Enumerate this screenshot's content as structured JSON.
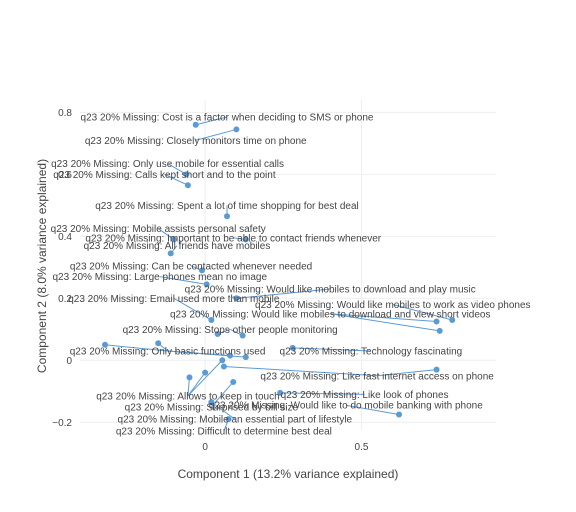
{
  "chart_data": {
    "type": "scatter",
    "xlabel": "Component 1 (13.2% variance explained)",
    "ylabel": "Component 2 (8.0% variance explained)",
    "xlim": [
      -0.4,
      0.93
    ],
    "ylim": [
      -0.225,
      0.84
    ],
    "xticks": [
      0,
      0.5
    ],
    "xtick_labels": [
      "0",
      "0.5"
    ],
    "yticks": [
      -0.2,
      0,
      0.2,
      0.4,
      0.6,
      0.8
    ],
    "ytick_labels": [
      "−0.2",
      "0",
      "0.2",
      "0.4",
      "0.6",
      "0.8"
    ],
    "grid": true,
    "point_color": "#5b9bd5",
    "points": [
      {
        "label": "q23 20% Missing: Cost is a factor when deciding to SMS or phone",
        "x": -0.03,
        "y": 0.76,
        "lx": 0.07,
        "ly": 0.785
      },
      {
        "label": "q23 20% Missing: Closely monitors time on phone",
        "x": 0.1,
        "y": 0.745,
        "lx": -0.03,
        "ly": 0.71
      },
      {
        "label": "q23 20% Missing: Only use mobile for essential calls",
        "x": -0.06,
        "y": 0.6,
        "lx": -0.12,
        "ly": 0.635
      },
      {
        "label": "q23 20% Missing: Calls kept short and to the point",
        "x": -0.055,
        "y": 0.565,
        "lx": -0.13,
        "ly": 0.6
      },
      {
        "label": "q23 20% Missing: Spent a lot of time shopping for best deal",
        "x": 0.07,
        "y": 0.465,
        "lx": 0.07,
        "ly": 0.5
      },
      {
        "label": "q23 20% Missing: Mobile assists personal safety",
        "x": -0.1,
        "y": 0.39,
        "lx": -0.15,
        "ly": 0.425
      },
      {
        "label": "q23 20% Missing: Important to be able to contact friends whenever",
        "x": 0.13,
        "y": 0.39,
        "lx": 0.09,
        "ly": 0.395
      },
      {
        "label": "q23 20% Missing: All friends have mobiles",
        "x": -0.11,
        "y": 0.345,
        "lx": -0.09,
        "ly": 0.37
      },
      {
        "label": "q23 20% Missing: Can be contacted whenever needed",
        "x": -0.01,
        "y": 0.29,
        "lx": -0.045,
        "ly": 0.305
      },
      {
        "label": "q23 20% Missing: Large phones mean no image",
        "x": 0.005,
        "y": 0.245,
        "lx": -0.145,
        "ly": 0.27
      },
      {
        "label": "q23 20% Missing: Would like mobiles to download and play music",
        "x": 0.1,
        "y": 0.2,
        "lx": 0.4,
        "ly": 0.23
      },
      {
        "label": "q23 20% Missing: Email used more than mobile",
        "x": 0.02,
        "y": 0.13,
        "lx": -0.1,
        "ly": 0.2
      },
      {
        "label": "q23 20% Missing: Would like mobiles to work as video phones",
        "x": 0.79,
        "y": 0.13,
        "lx": 0.6,
        "ly": 0.18
      },
      {
        "label": "q23 20% Missing: Would like mobiles to download and view short videos",
        "x": 0.74,
        "y": 0.125,
        "lx": 0.4,
        "ly": 0.15
      },
      {
        "label": "q23 20% Missing: Would like mobiles to download and view short videos",
        "x": 0.75,
        "y": 0.095,
        "lx": 0.4,
        "ly": 0.15
      },
      {
        "label": "q23 20% Missing: Stops other people monitoring",
        "x": 0.04,
        "y": 0.085,
        "lx": 0.08,
        "ly": 0.1
      },
      {
        "label": "q23 20% Missing: Stops other people monitoring",
        "x": 0.12,
        "y": 0.08,
        "lx": 0.08,
        "ly": 0.1
      },
      {
        "label": "q23 20% Missing: Technology fascinating",
        "x": 0.28,
        "y": 0.04,
        "lx": 0.53,
        "ly": 0.03
      },
      {
        "label": "q23 20% Missing: Only basic functions used",
        "x": -0.32,
        "y": 0.05,
        "lx": -0.12,
        "ly": 0.03
      },
      {
        "label": "q23 20% Missing: Only basic functions used",
        "x": -0.15,
        "y": 0.055,
        "lx": -0.12,
        "ly": 0.03
      },
      {
        "label": "q23 20% Missing: Only basic functions used",
        "x": 0.08,
        "y": 0.015,
        "lx": -0.12,
        "ly": 0.03
      },
      {
        "label": "q23 20% Missing: Only basic functions used",
        "x": 0.13,
        "y": 0.01,
        "lx": -0.12,
        "ly": 0.03
      },
      {
        "label": "q23 20% Missing: Like fast internet access on phone",
        "x": 0.74,
        "y": -0.03,
        "lx": 0.55,
        "ly": -0.05
      },
      {
        "label": "q23 20% Missing: Like fast internet access on phone",
        "x": 0.06,
        "y": -0.02,
        "lx": 0.55,
        "ly": -0.05
      },
      {
        "label": "q23 20% Missing: Allows to keep in touch",
        "x": -0.05,
        "y": -0.055,
        "lx": -0.055,
        "ly": -0.115
      },
      {
        "label": "q23 20% Missing: Allows to keep in touch",
        "x": 0.0,
        "y": -0.04,
        "lx": -0.055,
        "ly": -0.115
      },
      {
        "label": "q23 20% Missing: Allows to keep in touch",
        "x": 0.055,
        "y": 0.0,
        "lx": -0.055,
        "ly": -0.115
      },
      {
        "label": "q23 20% Missing: Like look of phones",
        "x": 0.24,
        "y": -0.105,
        "lx": 0.51,
        "ly": -0.11
      },
      {
        "label": "q23 20% Missing: Surprised by bill size",
        "x": 0.09,
        "y": -0.07,
        "lx": 0.02,
        "ly": -0.15
      },
      {
        "label": "q23 20% Missing: Would like to do mobile banking with phone",
        "x": 0.62,
        "y": -0.175,
        "lx": 0.45,
        "ly": -0.145
      },
      {
        "label": "q23 20% Missing: Mobile an essential part of lifestyle",
        "x": 0.02,
        "y": -0.135,
        "lx": 0.095,
        "ly": -0.19
      },
      {
        "label": "q23 20% Missing: Difficult to determine best deal",
        "x": 0.075,
        "y": -0.19,
        "lx": 0.06,
        "ly": -0.228
      }
    ]
  }
}
